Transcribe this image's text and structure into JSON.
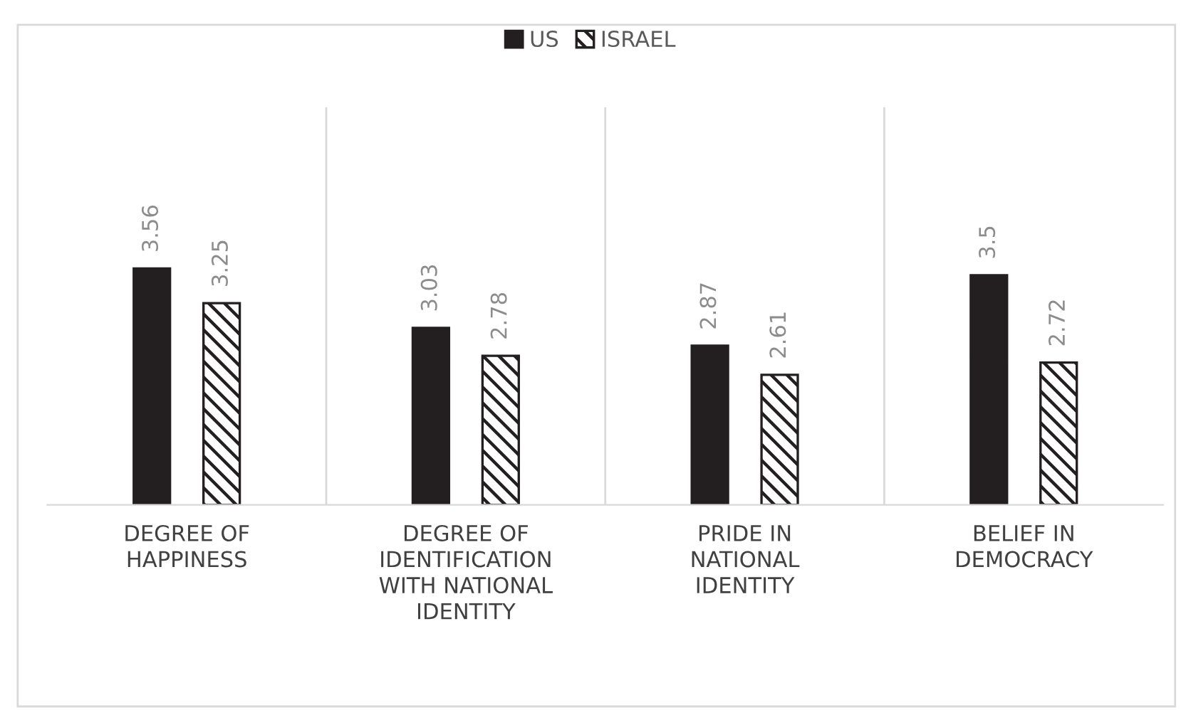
{
  "chart_data": {
    "type": "bar",
    "categories": [
      "DEGREE OF\nHAPPINESS",
      "DEGREE OF\nIDENTIFICATION\nWITH NATIONAL\nIDENTITY",
      "PRIDE IN\nNATIONAL\nIDENTITY",
      "BELIEF IN\nDEMOCRACY"
    ],
    "series": [
      {
        "name": "US",
        "color": "#231f20",
        "values": [
          3.56,
          3.03,
          2.87,
          3.5
        ]
      },
      {
        "name": "ISRAEL",
        "color": "#231f20",
        "values": [
          3.25,
          2.78,
          2.61,
          2.72
        ]
      }
    ],
    "ylim": [
      1.45,
      5.0
    ],
    "data_labels": true,
    "grid": "x",
    "legend": "top"
  }
}
